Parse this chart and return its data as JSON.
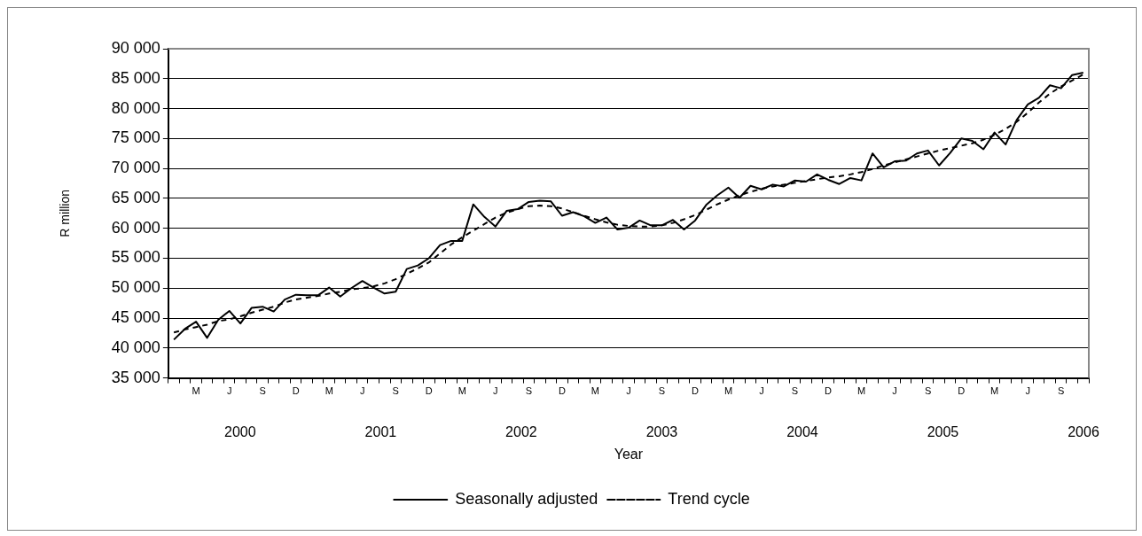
{
  "chart_data": {
    "type": "line",
    "categories": [
      null,
      null,
      "M",
      null,
      null,
      "J",
      null,
      null,
      "S",
      null,
      null,
      "D",
      null,
      null,
      "M",
      null,
      null,
      "J",
      null,
      null,
      "S",
      null,
      null,
      "D",
      null,
      null,
      "M",
      null,
      null,
      "J",
      null,
      null,
      "S",
      null,
      null,
      "D",
      null,
      null,
      "M",
      null,
      null,
      "J",
      null,
      null,
      "S",
      null,
      null,
      "D",
      null,
      null,
      "M",
      null,
      null,
      "J",
      null,
      null,
      "S",
      null,
      null,
      "D",
      null,
      null,
      "M",
      null,
      null,
      "J",
      null,
      null,
      "S",
      null,
      null,
      "D",
      null,
      null,
      "M",
      null,
      null,
      "J",
      null,
      null,
      "S",
      null,
      null
    ],
    "series": [
      {
        "name": "Seasonally adjusted",
        "color": "#000000",
        "line_style": "solid",
        "values": [
          41400,
          43200,
          44400,
          41700,
          44700,
          46200,
          44100,
          46700,
          46900,
          46100,
          48100,
          48900,
          48800,
          48800,
          50100,
          48600,
          50000,
          51200,
          50100,
          49100,
          49400,
          53200,
          53800,
          55000,
          57200,
          57900,
          57900,
          64000,
          61900,
          60300,
          62900,
          63200,
          64400,
          64600,
          64500,
          62100,
          62700,
          62000,
          60900,
          61800,
          59800,
          60100,
          61300,
          60500,
          60500,
          61400,
          59800,
          61300,
          63900,
          65500,
          66800,
          65100,
          67100,
          66500,
          67300,
          67000,
          68000,
          67800,
          69000,
          68100,
          67400,
          68400,
          68000,
          72500,
          70200,
          71200,
          71300,
          72500,
          73000,
          70500,
          72600,
          75000,
          74600,
          73200,
          76000,
          74000,
          78100,
          80700,
          81800,
          83900,
          83400,
          85600,
          86000
        ]
      },
      {
        "name": "Trend cycle",
        "color": "#000000",
        "line_style": "dashed",
        "values": [
          42600,
          43100,
          43500,
          43900,
          44500,
          44800,
          45300,
          45900,
          46400,
          46900,
          47600,
          48100,
          48400,
          48700,
          49100,
          49400,
          49800,
          50000,
          50300,
          50800,
          51500,
          52400,
          53300,
          54300,
          55800,
          57300,
          58500,
          59600,
          60700,
          61800,
          62600,
          63200,
          63700,
          63800,
          63700,
          63300,
          62700,
          62100,
          61500,
          61000,
          60600,
          60400,
          60300,
          60300,
          60500,
          60900,
          61500,
          62200,
          63100,
          64000,
          64800,
          65500,
          66100,
          66600,
          67000,
          67300,
          67600,
          67900,
          68200,
          68500,
          68700,
          69000,
          69400,
          69900,
          70500,
          71000,
          71500,
          72000,
          72500,
          73000,
          73400,
          73800,
          74200,
          74800,
          75600,
          76600,
          77800,
          79300,
          81000,
          82500,
          83700,
          84700,
          85700
        ]
      }
    ],
    "ylabel": "R million",
    "xlabel": "Year",
    "ylim": [
      35000,
      90000
    ],
    "yticks": [
      {
        "value": 35000,
        "label": "35 000"
      },
      {
        "value": 40000,
        "label": "40 000"
      },
      {
        "value": 45000,
        "label": "45 000"
      },
      {
        "value": 50000,
        "label": "50 000"
      },
      {
        "value": 55000,
        "label": "55 000"
      },
      {
        "value": 60000,
        "label": "60 000"
      },
      {
        "value": 65000,
        "label": "65 000"
      },
      {
        "value": 70000,
        "label": "70 000"
      },
      {
        "value": 75000,
        "label": "75 000"
      },
      {
        "value": 80000,
        "label": "80 000"
      },
      {
        "value": 85000,
        "label": "85 000"
      },
      {
        "value": 90000,
        "label": "90 000"
      }
    ],
    "annotations": [
      "2000",
      "2001",
      "2002",
      "2003",
      "2004",
      "2005",
      "2006"
    ],
    "grid": "y",
    "legend": "bottom",
    "marker": "none"
  }
}
